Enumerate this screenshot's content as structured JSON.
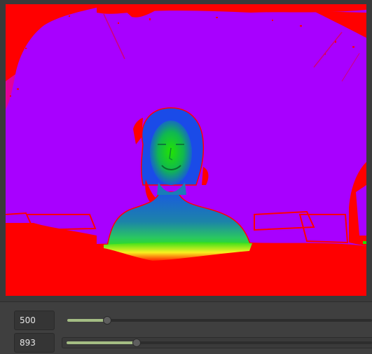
{
  "depth_view": {
    "colors": {
      "background": "#a800ff",
      "near": "#ff0000",
      "mid": "#00e000",
      "far": "#0022ff"
    }
  },
  "controls": {
    "min_depth": {
      "value": "500",
      "level": 0.13
    },
    "max_depth": {
      "value": "893",
      "level": 0.23
    }
  },
  "colors": {
    "slider_fill": "#a4bd84",
    "panel": "#3f3f3f"
  }
}
